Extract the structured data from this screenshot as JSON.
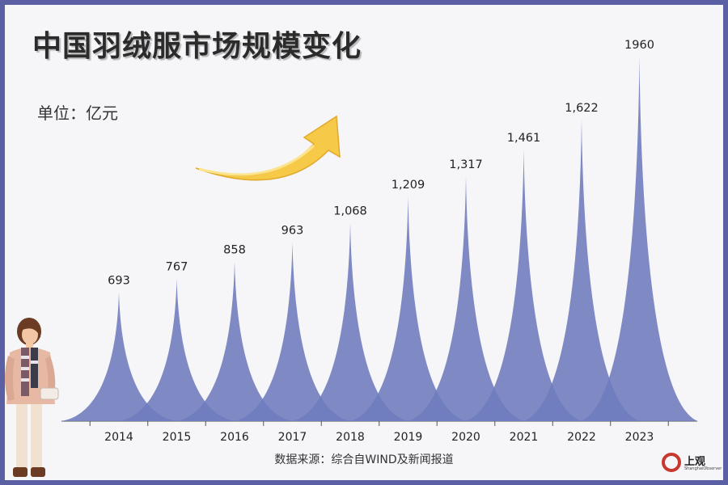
{
  "title": "中国羽绒服市场规模变化",
  "unit_label": "单位：亿元",
  "source": "数据来源：综合自WIND及新闻报道",
  "logo": {
    "name": "上观",
    "sub": "ShanghaiObserver"
  },
  "colors": {
    "peak": "#6e7bbd",
    "frame": "#5b5fa3",
    "arrow": "#f7c948"
  },
  "chart_data": {
    "type": "area",
    "categories": [
      "2014",
      "2015",
      "2016",
      "2017",
      "2018",
      "2019",
      "2020",
      "2021",
      "2022",
      "2023"
    ],
    "values": [
      693,
      767,
      858,
      963,
      1068,
      1209,
      1317,
      1461,
      1622,
      1960
    ],
    "value_labels": [
      "693",
      "767",
      "858",
      "963",
      "1,068",
      "1,209",
      "1,317",
      "1,461",
      "1,622",
      "1960"
    ],
    "title": "中国羽绒服市场规模变化",
    "xlabel": "",
    "ylabel": "",
    "ylim": [
      0,
      2000
    ],
    "grid": false,
    "legend": "none"
  }
}
